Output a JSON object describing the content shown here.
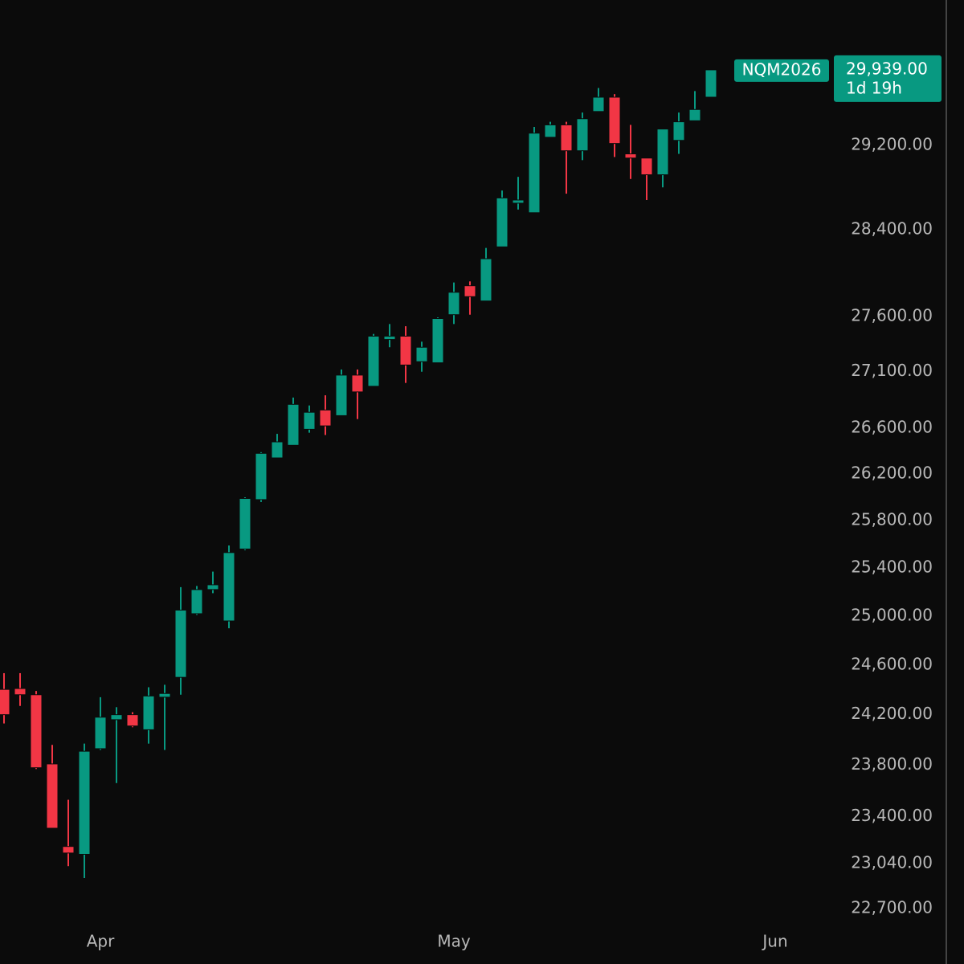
{
  "chart_data": {
    "type": "candlestick",
    "symbol": "NQM2026",
    "countdown": "1d 19h",
    "price_tag": {
      "value": 29939,
      "label": "29,939.00"
    },
    "log_scale": true,
    "up_color": "#089981",
    "down_color": "#f23645",
    "ylim": [
      22586,
      30637
    ],
    "yticks": [
      {
        "value": 22700,
        "label": "22,700.00"
      },
      {
        "value": 23040,
        "label": "23,040.00"
      },
      {
        "value": 23400,
        "label": "23,400.00"
      },
      {
        "value": 23800,
        "label": "23,800.00"
      },
      {
        "value": 24200,
        "label": "24,200.00"
      },
      {
        "value": 24600,
        "label": "24,600.00"
      },
      {
        "value": 25000,
        "label": "25,000.00"
      },
      {
        "value": 25400,
        "label": "25,400.00"
      },
      {
        "value": 25800,
        "label": "25,800.00"
      },
      {
        "value": 26200,
        "label": "26,200.00"
      },
      {
        "value": 26600,
        "label": "26,600.00"
      },
      {
        "value": 27100,
        "label": "27,100.00"
      },
      {
        "value": 27600,
        "label": "27,600.00"
      },
      {
        "value": 28400,
        "label": "28,400.00"
      },
      {
        "value": 29200,
        "label": "29,200.00"
      }
    ],
    "categories": [
      null,
      null,
      null,
      null,
      null,
      null,
      "Apr",
      null,
      null,
      null,
      null,
      null,
      null,
      null,
      null,
      null,
      null,
      null,
      null,
      null,
      null,
      null,
      null,
      null,
      null,
      null,
      null,
      null,
      "May",
      null,
      null,
      null,
      null,
      null,
      null,
      null,
      null,
      null,
      null,
      null,
      null,
      null,
      null,
      null,
      null,
      null,
      null,
      null,
      "Jun"
    ],
    "open": [
      24403,
      24410,
      24360,
      23810,
      23170,
      23110,
      23930,
      24160,
      24200,
      24080,
      24340,
      24500,
      25020,
      25220,
      24960,
      25560,
      25980,
      26340,
      26450,
      26590,
      26760,
      26710,
      27070,
      26970,
      27390,
      27420,
      27190,
      27180,
      27615,
      27880,
      27740,
      28240,
      28650,
      28560,
      29280,
      29400,
      29150,
      29530,
      29670,
      29120,
      29080,
      28920,
      29250,
      29440,
      29670,
      null,
      null,
      null,
      null
    ],
    "high": [
      24534,
      24534,
      24390,
      23960,
      23530,
      23970,
      24340,
      24260,
      24220,
      24420,
      24440,
      25240,
      25250,
      25370,
      25590,
      26000,
      26390,
      26550,
      26870,
      26800,
      26890,
      27120,
      27120,
      27440,
      27530,
      27510,
      27370,
      27590,
      27910,
      27920,
      28230,
      28770,
      28900,
      29380,
      29430,
      29430,
      29520,
      29760,
      29700,
      29400,
      29080,
      29360,
      29520,
      29730,
      29939,
      null,
      null,
      null,
      null
    ],
    "low": [
      24130,
      24270,
      23770,
      23310,
      23020,
      22930,
      23920,
      23660,
      24100,
      23970,
      23920,
      24360,
      25010,
      25190,
      24900,
      25550,
      25960,
      26340,
      26450,
      26560,
      26540,
      26710,
      26680,
      26970,
      27320,
      27000,
      27100,
      27180,
      27530,
      27615,
      27740,
      28240,
      28590,
      28560,
      29280,
      28740,
      29060,
      29530,
      29090,
      28880,
      28680,
      28800,
      29120,
      29440,
      29670,
      null,
      null,
      null,
      null
    ],
    "close": [
      24200,
      24360,
      23780,
      23310,
      23120,
      23910,
      24180,
      24200,
      24110,
      24350,
      24370,
      25050,
      25220,
      25260,
      25530,
      25990,
      26380,
      26480,
      26810,
      26740,
      26620,
      27070,
      26920,
      27420,
      27420,
      27160,
      27320,
      27580,
      27820,
      27780,
      28130,
      28700,
      28680,
      29320,
      29400,
      29150,
      29460,
      29670,
      29220,
      29080,
      28920,
      29360,
      29430,
      29550,
      29939,
      null,
      null,
      null,
      null
    ]
  }
}
